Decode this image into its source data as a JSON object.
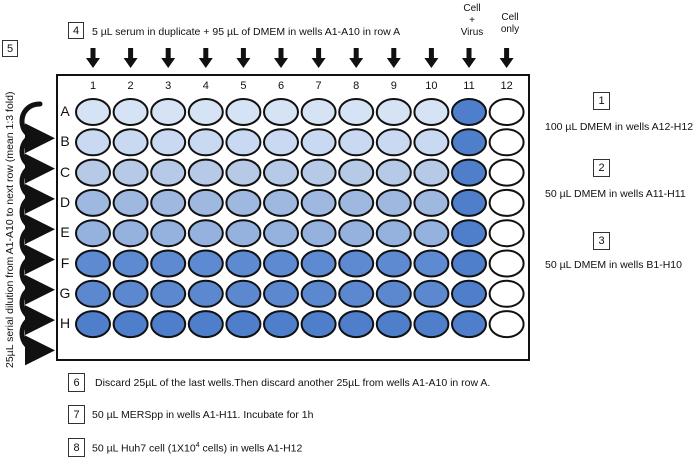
{
  "steps": {
    "s1": {
      "num": "1",
      "text": "100 µL DMEM in wells A12-H12"
    },
    "s2": {
      "num": "2",
      "text": "50 µL DMEM in wells A11-H11"
    },
    "s3": {
      "num": "3",
      "text": "50 µL DMEM in wells B1-H10"
    },
    "s4": {
      "num": "4",
      "text": "5 µL serum in duplicate + 95 µL of DMEM in wells A1-A10 in row A"
    },
    "s5": {
      "num": "5",
      "text": "25µL serial dilution from A1-A10 to next row (mean 1:3 fold)"
    },
    "s6": {
      "num": "6",
      "text": "Discard 25µL of the last wells.Then discard another 25µL from wells A1-A10 in row A."
    },
    "s7": {
      "num": "7",
      "text": "50 µL MERSpp in wells A1-H11. Incubate for 1h"
    },
    "s8": {
      "num": "8",
      "text_prefix": "50 µL Huh7 cell (1X10",
      "text_sup": "4",
      "text_suffix": " cells) in wells A1-H12"
    }
  },
  "plate": {
    "columns": [
      "1",
      "2",
      "3",
      "4",
      "5",
      "6",
      "7",
      "8",
      "9",
      "10",
      "11",
      "12"
    ],
    "rows": [
      "A",
      "B",
      "C",
      "D",
      "E",
      "F",
      "G",
      "H"
    ],
    "col11_header": [
      "Cell",
      "+",
      "Virus"
    ],
    "col12_header": [
      "Cell",
      "only"
    ],
    "row_colors": [
      "#d6e3f5",
      "#cad9f2",
      "#b6c9e6",
      "#9fb8e0",
      "#95b2df",
      "#5d8ad0",
      "#5b88cf",
      "#4f7fcb"
    ],
    "col11_color": "#4f7fcb",
    "col12_color": "#ffffff",
    "outline_color": "#111111"
  }
}
